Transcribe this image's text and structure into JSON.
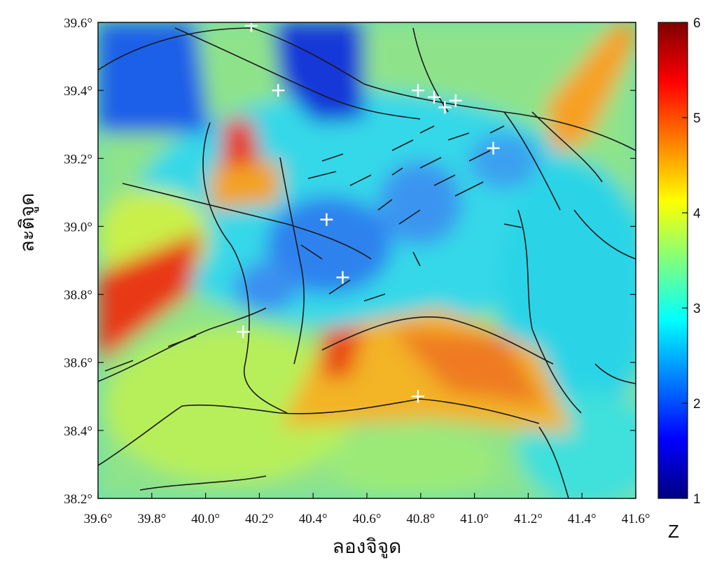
{
  "map": {
    "x_axis": {
      "title": "ลองจิจูด",
      "range": [
        39.6,
        41.6
      ],
      "ticks": [
        "39.6°",
        "39.8°",
        "40.0°",
        "40.2°",
        "40.4°",
        "40.6°",
        "40.8°",
        "41.0°",
        "41.2°",
        "41.4°",
        "41.6°"
      ]
    },
    "y_axis": {
      "title": "ละติจูด",
      "range": [
        38.2,
        39.6
      ],
      "ticks": [
        "38.2°",
        "38.4°",
        "38.6°",
        "38.8°",
        "39.0°",
        "39.2°",
        "39.4°",
        "39.6°"
      ]
    },
    "colorbar": {
      "title": "Z",
      "min": 1,
      "max": 6,
      "ticks": [
        "1",
        "2",
        "3",
        "4",
        "5",
        "6"
      ],
      "colors": [
        "#00007f",
        "#0000ff",
        "#007fff",
        "#00ffff",
        "#7fff7f",
        "#ffff00",
        "#ff7f00",
        "#ff0000",
        "#7f0000"
      ]
    },
    "stations": [
      {
        "lon": 40.17,
        "lat": 39.59
      },
      {
        "lon": 40.27,
        "lat": 39.4
      },
      {
        "lon": 40.79,
        "lat": 39.4
      },
      {
        "lon": 40.85,
        "lat": 39.38
      },
      {
        "lon": 40.89,
        "lat": 39.35
      },
      {
        "lon": 40.93,
        "lat": 39.37
      },
      {
        "lon": 41.07,
        "lat": 39.23
      },
      {
        "lon": 40.45,
        "lat": 39.02
      },
      {
        "lon": 40.51,
        "lat": 38.85
      },
      {
        "lon": 40.14,
        "lat": 38.69
      },
      {
        "lon": 40.79,
        "lat": 38.5
      }
    ]
  }
}
